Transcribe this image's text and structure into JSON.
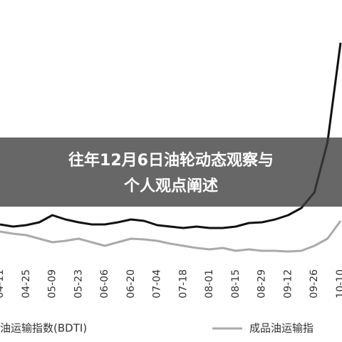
{
  "chart_data": {
    "type": "line",
    "title_lines": [
      "往年12月6日油轮动态观察与",
      "个人观点阐述"
    ],
    "categories": [
      "04-11",
      null,
      "04-25",
      null,
      "05-09",
      null,
      "05-23",
      null,
      "06-06",
      null,
      "06-20",
      null,
      "07-04",
      null,
      "07-18",
      null,
      "08-01",
      null,
      "08-15",
      null,
      "08-29",
      null,
      "09-12",
      null,
      "09-26",
      null,
      "10-10"
    ],
    "ylim": [
      0,
      360
    ],
    "series": [
      {
        "name": "油运输指数(BDTI)",
        "color": "#111111",
        "values": [
          45,
          42,
          44,
          48,
          58,
          52,
          48,
          45,
          45,
          48,
          52,
          50,
          44,
          42,
          40,
          42,
          40,
          40,
          42,
          47,
          48,
          52,
          58,
          68,
          90,
          160,
          300
        ]
      },
      {
        "name": "成品油运输指",
        "color": "#aaaaaa",
        "values": [
          35,
          32,
          30,
          25,
          20,
          22,
          25,
          20,
          15,
          20,
          25,
          24,
          22,
          18,
          15,
          12,
          10,
          12,
          8,
          10,
          8,
          8,
          7,
          8,
          15,
          25,
          50
        ]
      }
    ]
  }
}
